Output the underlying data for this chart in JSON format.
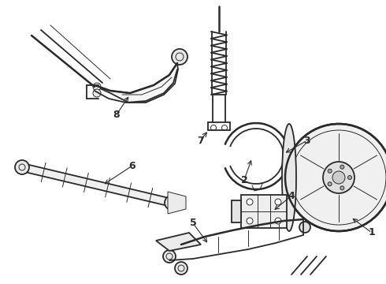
{
  "background_color": "#ffffff",
  "line_color": "#2a2a2a",
  "figsize": [
    4.9,
    3.6
  ],
  "dpi": 100,
  "label_fontsize": 9,
  "lw_main": 1.3,
  "lw_thin": 0.7,
  "lw_thick": 1.8
}
